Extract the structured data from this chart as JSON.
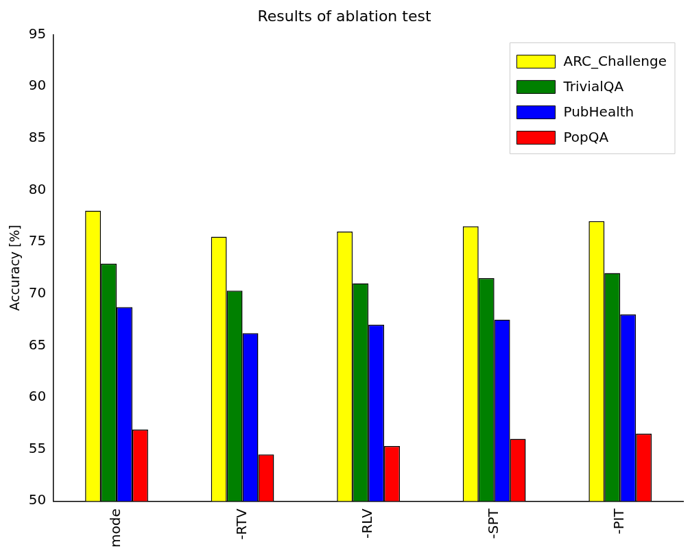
{
  "chart_data": {
    "type": "bar",
    "title": "Results of ablation test",
    "ylabel": "Accuracy [%]",
    "categories": [
      "mode",
      "-RTV",
      "-RLV",
      "-SPT",
      "-PIT"
    ],
    "series": [
      {
        "name": "ARC_Challenge",
        "color": "#ffff00",
        "values": [
          78,
          75.5,
          76,
          76.5,
          77
        ]
      },
      {
        "name": "TrivialQA",
        "color": "#008000",
        "values": [
          72.9,
          70.3,
          71,
          71.5,
          72
        ]
      },
      {
        "name": "PubHealth",
        "color": "#0000ff",
        "values": [
          68.7,
          66.2,
          67,
          67.5,
          68
        ]
      },
      {
        "name": "PopQA",
        "color": "#ff0000",
        "values": [
          56.9,
          54.5,
          55.3,
          56,
          56.5
        ]
      }
    ],
    "ylim": [
      50,
      95
    ],
    "yticks": [
      50,
      55,
      60,
      65,
      70,
      75,
      80,
      85,
      90,
      95
    ],
    "grid": false,
    "legend": "top right"
  }
}
